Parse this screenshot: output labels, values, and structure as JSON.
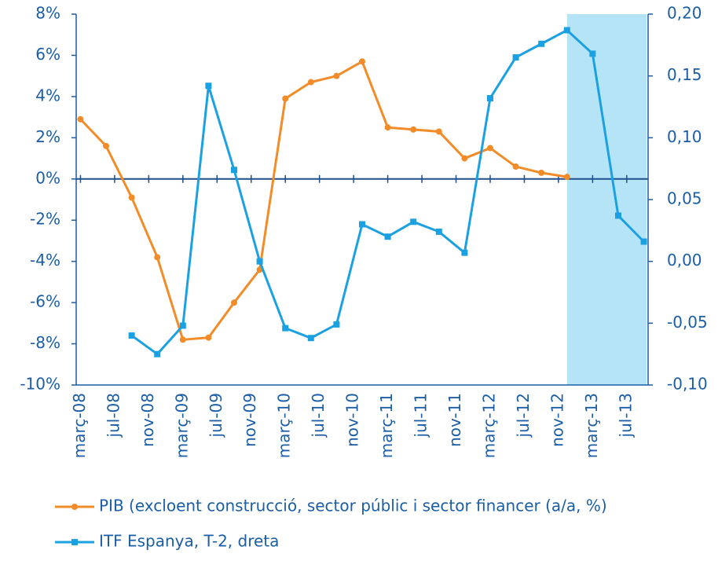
{
  "chart_data": {
    "type": "line",
    "categories": [
      "març-08",
      null,
      null,
      null,
      "jul-08",
      null,
      null,
      null,
      "nov-08",
      null,
      null,
      null,
      "març-09",
      null,
      null,
      null,
      "jul-09",
      null,
      null,
      null,
      "nov-09",
      null,
      null,
      null,
      "març-10",
      null,
      null,
      null,
      "jul-10",
      null,
      null,
      null,
      "nov-10",
      null,
      null,
      null,
      "març-11",
      null,
      null,
      null,
      "jul-11",
      null,
      null,
      null,
      "nov-11",
      null,
      null,
      null,
      "març-12",
      null,
      null,
      null,
      "jul-12",
      null,
      null,
      null,
      "nov-12",
      null,
      null,
      null,
      "març-13",
      null,
      null,
      null,
      "jul-13",
      null,
      null
    ],
    "series": [
      {
        "name": "PIB (excloent construcció, sector públic i sector financer (a/a, %)",
        "color": "#f28c28",
        "marker": "circle",
        "values": [
          2.9,
          null,
          null,
          1.6,
          null,
          null,
          -0.9,
          null,
          null,
          -3.8,
          null,
          null,
          -7.8,
          null,
          null,
          -7.7,
          null,
          null,
          -6.0,
          null,
          null,
          -4.4,
          null,
          null,
          3.9,
          null,
          null,
          4.7,
          null,
          null,
          5.0,
          null,
          null,
          5.7,
          null,
          null,
          2.5,
          null,
          null,
          2.4,
          null,
          null,
          2.3,
          null,
          null,
          1.0,
          null,
          null,
          1.5,
          null,
          null,
          0.6,
          null,
          null,
          0.3,
          null,
          null,
          0.1,
          null,
          null,
          null,
          null,
          null,
          null,
          null,
          null,
          null
        ]
      },
      {
        "name": "ITF Espanya, T-2, dreta",
        "color": "#1ba1e2",
        "marker": "square",
        "axis": "y2",
        "values": [
          null,
          null,
          null,
          null,
          null,
          null,
          -0.06,
          null,
          null,
          -0.075,
          null,
          null,
          -0.052,
          null,
          null,
          0.142,
          null,
          null,
          0.074,
          null,
          null,
          0.0,
          null,
          null,
          -0.054,
          null,
          null,
          -0.062,
          null,
          null,
          -0.051,
          null,
          null,
          0.03,
          null,
          null,
          0.02,
          null,
          null,
          0.032,
          null,
          null,
          0.024,
          null,
          null,
          0.007,
          null,
          null,
          0.132,
          null,
          null,
          0.165,
          null,
          null,
          0.176,
          null,
          null,
          0.187,
          null,
          null,
          0.168,
          null,
          null,
          0.037,
          null,
          null,
          0.016
        ]
      }
    ],
    "ylim": [
      -10,
      8
    ],
    "yticks": [
      {
        "value": -10,
        "label": "-10%"
      },
      {
        "value": -8,
        "label": "-8%"
      },
      {
        "value": -6,
        "label": "-6%"
      },
      {
        "value": -4,
        "label": "-4%"
      },
      {
        "value": -2,
        "label": "-2%"
      },
      {
        "value": 0,
        "label": "0%"
      },
      {
        "value": 2,
        "label": "2%"
      },
      {
        "value": 4,
        "label": "4%"
      },
      {
        "value": 6,
        "label": "6%"
      },
      {
        "value": 8,
        "label": "8%"
      }
    ],
    "y2lim": [
      -0.1,
      0.2
    ],
    "y2ticks": [
      {
        "value": -0.1,
        "label": "-0,10"
      },
      {
        "value": -0.05,
        "label": "-0,05"
      },
      {
        "value": 0,
        "label": "0,00"
      },
      {
        "value": 0.05,
        "label": "0,05"
      },
      {
        "value": 0.1,
        "label": "0,10"
      },
      {
        "value": 0.15,
        "label": "0,15"
      },
      {
        "value": 0.2,
        "label": "0,20"
      }
    ],
    "grid": false,
    "legend": "bottom"
  }
}
